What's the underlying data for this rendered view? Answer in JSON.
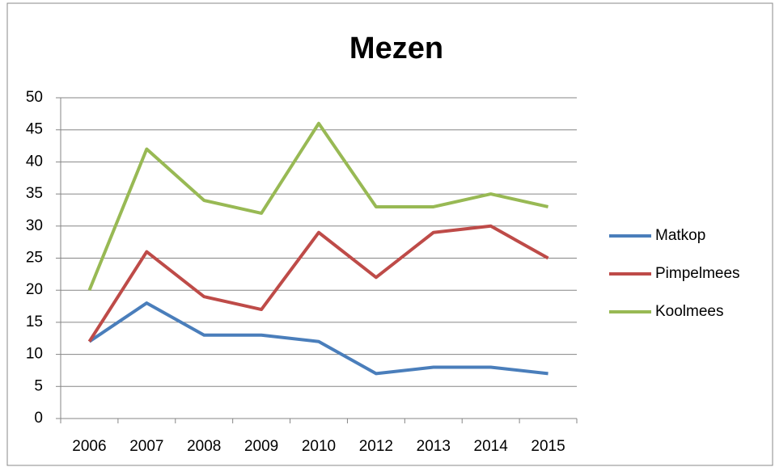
{
  "chart_data": {
    "type": "line",
    "title": "Mezen",
    "categories": [
      "2006",
      "2007",
      "2008",
      "2009",
      "2010",
      "2012",
      "2013",
      "2014",
      "2015"
    ],
    "series": [
      {
        "name": "Matkop",
        "color": "#4a7ebb",
        "values": [
          12,
          18,
          13,
          13,
          12,
          7,
          8,
          8,
          7
        ]
      },
      {
        "name": "Pimpelmees",
        "color": "#be4b48",
        "values": [
          12,
          26,
          19,
          17,
          29,
          22,
          29,
          30,
          25
        ]
      },
      {
        "name": "Koolmees",
        "color": "#98b954",
        "values": [
          20,
          42,
          34,
          32,
          46,
          33,
          33,
          35,
          33
        ]
      }
    ],
    "ylim": [
      0,
      50
    ],
    "yticks": [
      0,
      5,
      10,
      15,
      20,
      25,
      30,
      35,
      40,
      45,
      50
    ],
    "grid": true,
    "legend": "right"
  }
}
